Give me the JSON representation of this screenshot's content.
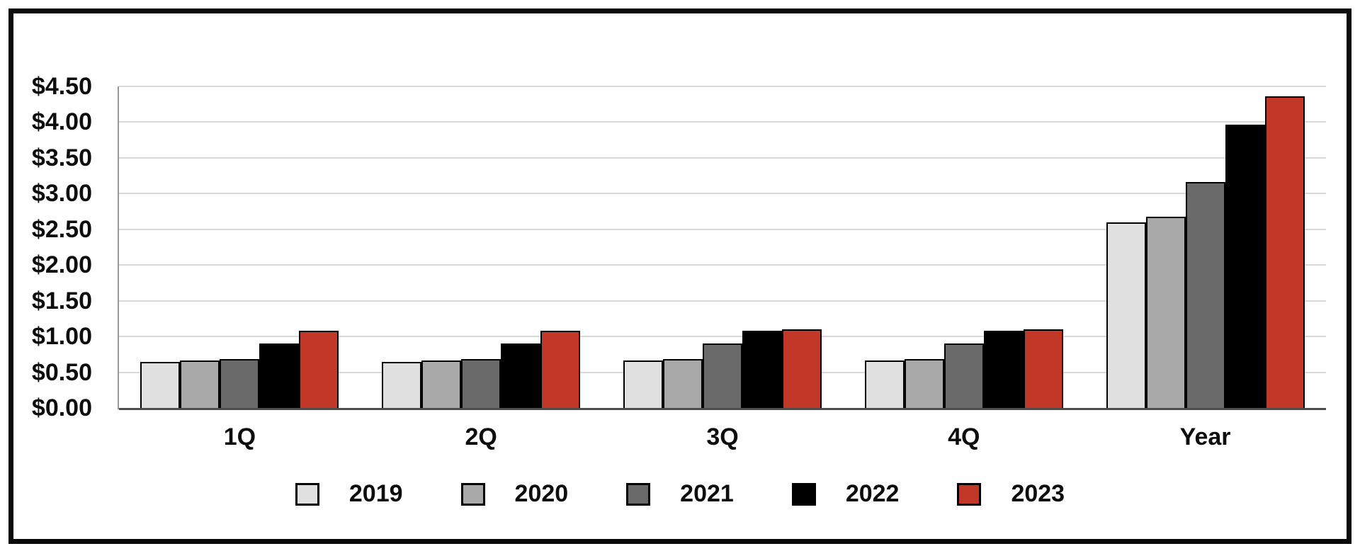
{
  "chart_data": {
    "type": "bar",
    "title": "",
    "categories": [
      "1Q",
      "2Q",
      "3Q",
      "4Q",
      "Year"
    ],
    "series": [
      {
        "name": "2019",
        "color": "#e0e0e0",
        "values": [
          0.64,
          0.64,
          0.66,
          0.66,
          2.6
        ]
      },
      {
        "name": "2020",
        "color": "#a9a9a9",
        "values": [
          0.66,
          0.66,
          0.68,
          0.68,
          2.68
        ]
      },
      {
        "name": "2021",
        "color": "#6a6a6a",
        "values": [
          0.68,
          0.68,
          0.9,
          0.9,
          3.16
        ]
      },
      {
        "name": "2022",
        "color": "#000000",
        "values": [
          0.9,
          0.9,
          1.08,
          1.08,
          3.96
        ]
      },
      {
        "name": "2023",
        "color": "#c23828",
        "values": [
          1.08,
          1.08,
          1.1,
          1.1,
          4.36
        ]
      }
    ],
    "y_axis": {
      "min": 0,
      "max": 4.5,
      "step": 0.5,
      "tick_labels": [
        "$0.00",
        "$0.50",
        "$1.00",
        "$1.50",
        "$2.00",
        "$2.50",
        "$3.00",
        "$3.50",
        "$4.00",
        "$4.50"
      ]
    },
    "x_axis": {
      "tick_labels": [
        "1Q",
        "2Q",
        "3Q",
        "4Q",
        "Year"
      ]
    },
    "legend": {
      "position": "bottom",
      "entries": [
        "2019",
        "2020",
        "2021",
        "2022",
        "2023"
      ]
    },
    "grid": true,
    "styles": {
      "gridline_color": "#d9d9d9",
      "baseline_color": "#4d4d4d",
      "axis_line_color": "#999999",
      "bar_border_color": "#000000",
      "frame_border_color": "#0a0a0a",
      "label_color": "#0d0d0d"
    }
  }
}
